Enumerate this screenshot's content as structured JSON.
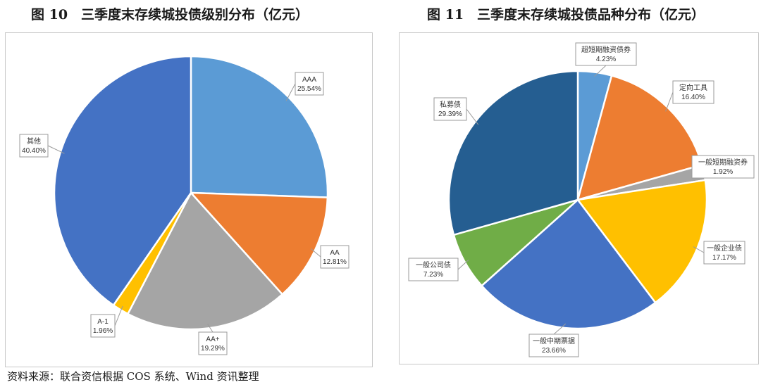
{
  "figures": [
    {
      "title": "图 10　三季度末存续城投债级别分布（亿元）"
    },
    {
      "title": "图 11　三季度末存续城投债品种分布（亿元）"
    }
  ],
  "source_note": "资料来源：联合资信根据 COS 系统、Wind 资讯整理",
  "chart_data": [
    {
      "type": "pie",
      "title": "三季度末存续城投债级别分布（亿元）",
      "start_angle_deg": 0,
      "direction": "clockwise",
      "slices": [
        {
          "label": "AAA",
          "value": 25.54,
          "display": "25.54%",
          "color": "#5B9BD5"
        },
        {
          "label": "AA",
          "value": 12.81,
          "display": "12.81%",
          "color": "#ED7D31"
        },
        {
          "label": "AA+",
          "value": 19.29,
          "display": "19.29%",
          "color": "#A5A5A5"
        },
        {
          "label": "A-1",
          "value": 1.96,
          "display": "1.96%",
          "color": "#FFC000"
        },
        {
          "label": "其他",
          "value": 40.4,
          "display": "40.40%",
          "color": "#4472C4"
        }
      ]
    },
    {
      "type": "pie",
      "title": "三季度末存续城投债品种分布（亿元）",
      "start_angle_deg": 0,
      "direction": "clockwise",
      "slices": [
        {
          "label": "超短期融资债券",
          "value": 4.23,
          "display": "4.23%",
          "color": "#5B9BD5"
        },
        {
          "label": "定向工具",
          "value": 16.4,
          "display": "16.40%",
          "color": "#ED7D31"
        },
        {
          "label": "一般短期融资券",
          "value": 1.92,
          "display": "1.92%",
          "color": "#A5A5A5"
        },
        {
          "label": "一般企业债",
          "value": 17.17,
          "display": "17.17%",
          "color": "#FFC000"
        },
        {
          "label": "一般中期票据",
          "value": 23.66,
          "display": "23.66%",
          "color": "#4472C4"
        },
        {
          "label": "一般公司债",
          "value": 7.23,
          "display": "7.23%",
          "color": "#70AD47"
        },
        {
          "label": "私募债",
          "value": 29.39,
          "display": "29.39%",
          "color": "#255E91"
        }
      ]
    }
  ]
}
